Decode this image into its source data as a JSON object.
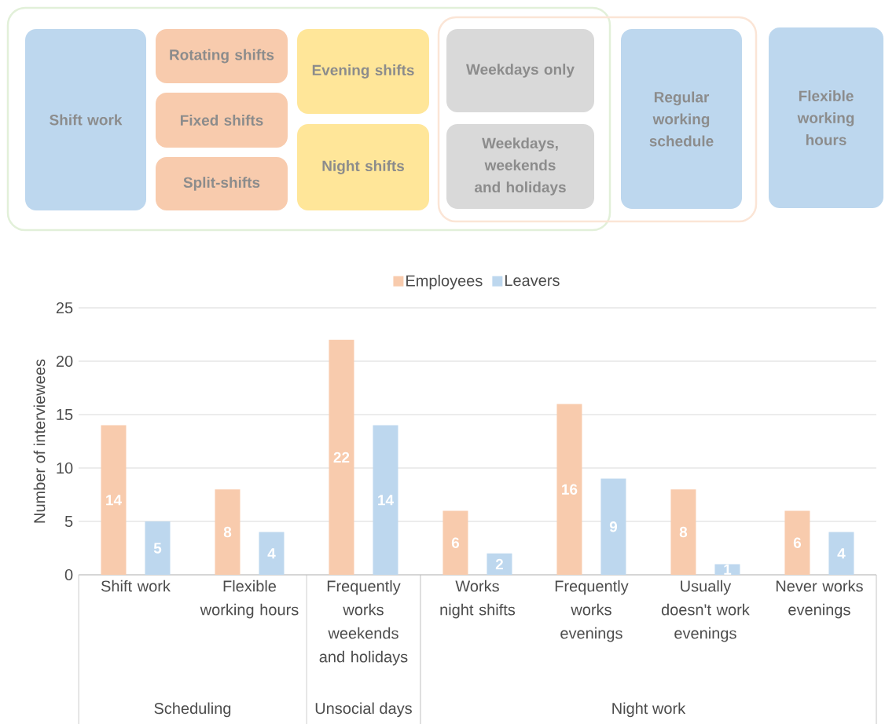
{
  "chart_data": [
    {
      "type": "other",
      "annotations": [
        "Shift work",
        "Rotating shifts",
        "Fixed shifts",
        "Split-shifts",
        "Evening shifts",
        "Night shifts",
        "Weekdays only",
        "Weekdays, weekends and holidays",
        "Regular working schedule",
        "Flexible working hours"
      ],
      "colors": [
        "#bdd7ee",
        "#f8cbad",
        "#f8cbad",
        "#f8cbad",
        "#ffe699",
        "#ffe699",
        "#d9d9d9",
        "#d9d9d9",
        "#bdd7ee",
        "#bdd7ee"
      ]
    },
    {
      "type": "bar",
      "categories": [
        "Shift work",
        "Flexible working hours",
        "Frequently works weekends and holidays",
        "Works night shifts",
        "Frequently works evenings",
        "Usually doesn't work evenings",
        "Never works evenings"
      ],
      "series": [
        {
          "name": "Employees",
          "color": "#f8cbad",
          "values": [
            14,
            8,
            22,
            6,
            16,
            8,
            6
          ]
        },
        {
          "name": "Leavers",
          "color": "#bdd7ee",
          "values": [
            5,
            4,
            14,
            2,
            9,
            1,
            4
          ]
        }
      ],
      "ylabel": "Number of interviewees",
      "ylim": [
        0,
        25
      ],
      "yticks": [
        0,
        5,
        10,
        15,
        20,
        25
      ],
      "grid": "y",
      "legend": "top",
      "data_labels": true,
      "annotations": [
        "Scheduling",
        "Unsocial days",
        "Night work"
      ]
    }
  ]
}
